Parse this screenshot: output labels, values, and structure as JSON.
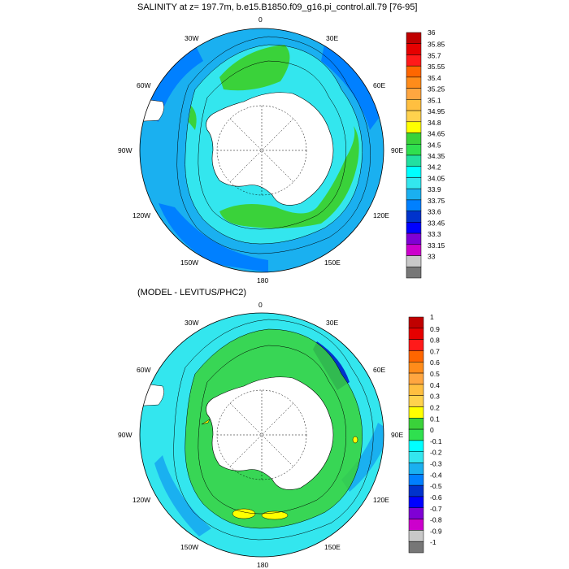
{
  "panels": [
    {
      "title": "SALINITY at z= 197.7m, b.e15.B1850.f09_g16.pi_control.all.79 [76-95]",
      "lon_labels": [
        "0",
        "30E",
        "60E",
        "90E",
        "120E",
        "150E",
        "180",
        "150W",
        "120W",
        "90W",
        "60W",
        "30W"
      ],
      "colorbar_labels": [
        "36",
        "35.85",
        "35.7",
        "35.55",
        "35.4",
        "35.25",
        "35.1",
        "34.95",
        "34.8",
        "34.65",
        "34.5",
        "34.35",
        "34.2",
        "34.05",
        "33.9",
        "33.75",
        "33.6",
        "33.45",
        "33.3",
        "33.15",
        "33"
      ]
    },
    {
      "title": "(MODEL - LEVITUS/PHC2)",
      "lon_labels": [
        "0",
        "30E",
        "60E",
        "90E",
        "120E",
        "150E",
        "180",
        "150W",
        "120W",
        "90W",
        "60W",
        "30W"
      ],
      "colorbar_labels": [
        "1",
        "0.9",
        "0.8",
        "0.7",
        "0.6",
        "0.5",
        "0.4",
        "0.3",
        "0.2",
        "0.1",
        "0",
        "-0.1",
        "-0.2",
        "-0.3",
        "-0.4",
        "-0.5",
        "-0.6",
        "-0.7",
        "-0.8",
        "-0.9",
        "-1"
      ]
    }
  ],
  "colors": {
    "top_scale": [
      "#c00000",
      "#e60000",
      "#ff1a1a",
      "#ff6600",
      "#ff8c1a",
      "#ffa640",
      "#ffbf40",
      "#ffd24d",
      "#ffff00",
      "#3ad23a",
      "#2fe04f",
      "#22e0a0",
      "#00ffff",
      "#33e6ee",
      "#1ab0f0",
      "#0080ff",
      "#0033cc",
      "#0000ff",
      "#7f00d4",
      "#cc00cc",
      "#c8c8c8",
      "#777777"
    ],
    "bottom_scale": [
      "#c00000",
      "#e60000",
      "#ff1a1a",
      "#ff6600",
      "#ff8c1a",
      "#ffa640",
      "#ffbf40",
      "#ffd24d",
      "#ffff00",
      "#3ad23a",
      "#2fe04f",
      "#00ffff",
      "#33e6ee",
      "#1ab0f0",
      "#0080ff",
      "#0033cc",
      "#0000ff",
      "#7f00d4",
      "#cc00cc",
      "#c8c8c8",
      "#777777"
    ],
    "land": "#ffffff",
    "ocean_base": "#1ab0f0"
  }
}
